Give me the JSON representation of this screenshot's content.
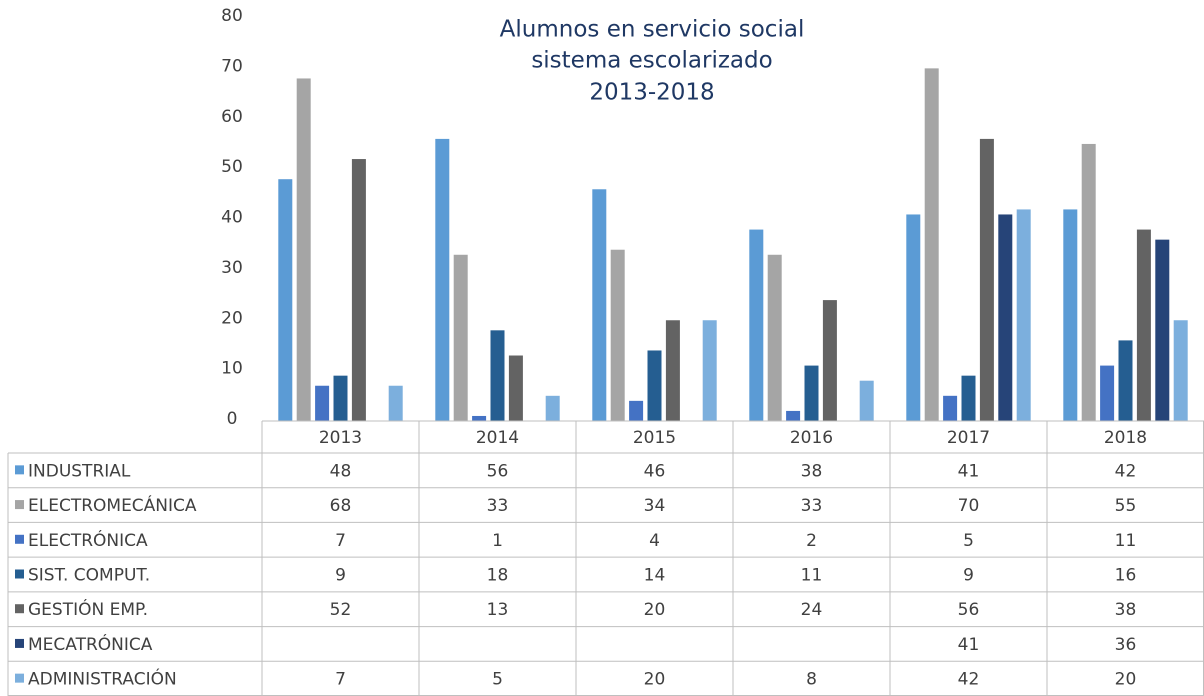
{
  "chart_data": {
    "type": "bar",
    "title_lines": [
      "Alumnos en servicio social",
      "sistema escolarizado",
      "2013-2018"
    ],
    "categories": [
      "2013",
      "2014",
      "2015",
      "2016",
      "2017",
      "2018"
    ],
    "series": [
      {
        "name": "INDUSTRIAL",
        "color": "#5b9bd5",
        "values": [
          48,
          56,
          46,
          38,
          41,
          42
        ]
      },
      {
        "name": "ELECTROMECÁNICA",
        "color": "#a5a5a5",
        "values": [
          68,
          33,
          34,
          33,
          70,
          55
        ]
      },
      {
        "name": "ELECTRÓNICA",
        "color": "#4472c4",
        "values": [
          7,
          1,
          4,
          2,
          5,
          11
        ]
      },
      {
        "name": "SIST.  COMPUT.",
        "color": "#255e91",
        "values": [
          9,
          18,
          14,
          11,
          9,
          16
        ]
      },
      {
        "name": "GESTIÓN EMP.",
        "color": "#636363",
        "values": [
          52,
          13,
          20,
          24,
          56,
          38
        ]
      },
      {
        "name": "MECATRÓNICA",
        "color": "#264478",
        "values": [
          null,
          null,
          null,
          null,
          41,
          36
        ]
      },
      {
        "name": "ADMINISTRACIÓN",
        "color": "#7cafdd",
        "values": [
          7,
          5,
          20,
          8,
          42,
          20
        ]
      }
    ],
    "ylim": [
      0,
      80
    ],
    "yticks": [
      0,
      10,
      20,
      30,
      40,
      50,
      60,
      70,
      80
    ]
  }
}
